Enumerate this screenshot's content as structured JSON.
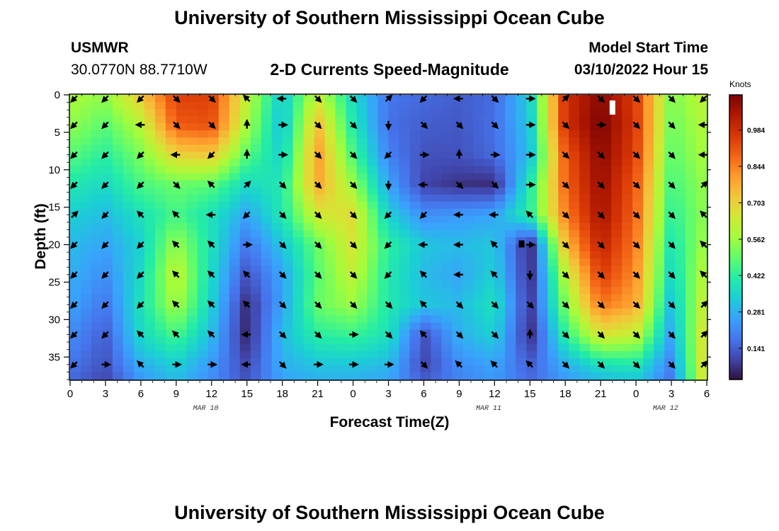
{
  "header": {
    "title": "University of Southern Mississippi Ocean Cube",
    "station_name": "USMWR",
    "station_coords": "30.0770N  88.7710W",
    "plot_title": "2-D Currents Speed-Magnitude",
    "model_label": "Model Start Time",
    "model_time": "03/10/2022 Hour 15"
  },
  "footer": {
    "title": "University of Southern Mississippi Ocean Cube"
  },
  "colors": {
    "colormap": [
      "#30123b",
      "#4145ab",
      "#4675ed",
      "#39a2fc",
      "#1bcfd4",
      "#24eca6",
      "#61fc6c",
      "#a4fc3b",
      "#d1e834",
      "#f3c63a",
      "#fe9b2d",
      "#f36315",
      "#d93806",
      "#b11901",
      "#7a0403"
    ]
  },
  "chart_data": {
    "type": "heatmap",
    "title": "2-D Currents Speed-Magnitude",
    "xlabel": "Forecast Time(Z)",
    "ylabel": "Depth (ft)",
    "x_ticks": [
      "0",
      "3",
      "6",
      "9",
      "12",
      "15",
      "18",
      "21",
      "0",
      "3",
      "6",
      "9",
      "12",
      "15",
      "18",
      "21",
      "0",
      "3",
      "6"
    ],
    "x_tick_hours": [
      0,
      3,
      6,
      9,
      12,
      15,
      18,
      21,
      24,
      27,
      30,
      33,
      36,
      39,
      42,
      45,
      48,
      51,
      54
    ],
    "x_range_hours": [
      0,
      54
    ],
    "date_labels": [
      {
        "text": "MAR 10",
        "hour": 11.5
      },
      {
        "text": "MAR 11",
        "hour": 35.5
      },
      {
        "text": "MAR 12",
        "hour": 50.5
      }
    ],
    "y_ticks": [
      0,
      5,
      10,
      15,
      20,
      25,
      30,
      35
    ],
    "y_range_ft": [
      0,
      38
    ],
    "colorbar": {
      "label": "Knots",
      "ticks": [
        "0.984",
        "0.844",
        "0.703",
        "0.562",
        "0.422",
        "0.281",
        "0.141"
      ],
      "tick_values": [
        0.984,
        0.844,
        0.703,
        0.562,
        0.422,
        0.281,
        0.141
      ],
      "range": [
        0.02,
        1.12
      ]
    },
    "speed_grid": {
      "hours": [
        0,
        3,
        6,
        9,
        12,
        15,
        18,
        21,
        24,
        27,
        30,
        33,
        36,
        39,
        42,
        45,
        48,
        51,
        54
      ],
      "depths_ft": [
        0,
        4,
        8,
        12,
        16,
        20,
        24,
        28,
        32,
        36,
        38
      ],
      "values_knots": [
        [
          0.58,
          0.55,
          0.72,
          0.95,
          0.95,
          0.62,
          0.32,
          0.62,
          0.36,
          0.18,
          0.16,
          0.14,
          0.16,
          0.34,
          0.98,
          1.1,
          0.95,
          0.52,
          0.62
        ],
        [
          0.55,
          0.48,
          0.6,
          0.9,
          0.92,
          0.58,
          0.3,
          0.74,
          0.4,
          0.17,
          0.14,
          0.13,
          0.17,
          0.32,
          0.98,
          1.12,
          0.96,
          0.5,
          0.6
        ],
        [
          0.48,
          0.42,
          0.52,
          0.7,
          0.72,
          0.48,
          0.34,
          0.8,
          0.46,
          0.2,
          0.12,
          0.12,
          0.16,
          0.3,
          0.9,
          1.1,
          0.94,
          0.48,
          0.58
        ],
        [
          0.4,
          0.36,
          0.46,
          0.5,
          0.48,
          0.36,
          0.4,
          0.78,
          0.56,
          0.26,
          0.1,
          0.07,
          0.06,
          0.4,
          0.88,
          1.08,
          0.9,
          0.45,
          0.56
        ],
        [
          0.34,
          0.3,
          0.38,
          0.46,
          0.38,
          0.26,
          0.4,
          0.64,
          0.68,
          0.34,
          0.22,
          0.24,
          0.26,
          0.42,
          0.84,
          1.06,
          0.88,
          0.42,
          0.55
        ],
        [
          0.3,
          0.26,
          0.34,
          0.56,
          0.38,
          0.18,
          0.32,
          0.5,
          0.66,
          0.42,
          0.32,
          0.3,
          0.32,
          0.05,
          0.74,
          1.02,
          0.85,
          0.38,
          0.58
        ],
        [
          0.28,
          0.22,
          0.36,
          0.62,
          0.36,
          0.12,
          0.26,
          0.48,
          0.62,
          0.4,
          0.3,
          0.26,
          0.34,
          0.06,
          0.6,
          0.96,
          0.82,
          0.35,
          0.62
        ],
        [
          0.26,
          0.18,
          0.38,
          0.58,
          0.34,
          0.06,
          0.26,
          0.5,
          0.56,
          0.4,
          0.32,
          0.3,
          0.38,
          0.08,
          0.52,
          0.86,
          0.78,
          0.3,
          0.66
        ],
        [
          0.22,
          0.14,
          0.36,
          0.46,
          0.3,
          0.05,
          0.3,
          0.42,
          0.44,
          0.38,
          0.12,
          0.28,
          0.34,
          0.06,
          0.42,
          0.66,
          0.62,
          0.26,
          0.7
        ],
        [
          0.18,
          0.12,
          0.28,
          0.34,
          0.24,
          0.1,
          0.28,
          0.32,
          0.32,
          0.3,
          0.1,
          0.22,
          0.26,
          0.14,
          0.28,
          0.38,
          0.4,
          0.2,
          0.72
        ],
        [
          0.16,
          0.1,
          0.24,
          0.3,
          0.22,
          0.12,
          0.26,
          0.28,
          0.28,
          0.26,
          0.14,
          0.2,
          0.24,
          0.16,
          0.24,
          0.3,
          0.32,
          0.18,
          0.7
        ]
      ]
    },
    "vectors": {
      "hours": [
        0,
        3,
        6,
        9,
        12,
        15,
        18,
        21,
        24,
        27,
        30,
        33,
        36,
        39,
        42,
        45,
        48,
        51,
        54
      ],
      "depths_ft": [
        0.5,
        4,
        8,
        12,
        16,
        20,
        24,
        28,
        32,
        36
      ],
      "directions_deg": [
        [
          225,
          225,
          225,
          135,
          135,
          315,
          270,
          135,
          135,
          45,
          225,
          270,
          135,
          90,
          45,
          135,
          135,
          135,
          225
        ],
        [
          225,
          225,
          270,
          135,
          135,
          0,
          90,
          135,
          135,
          180,
          135,
          135,
          135,
          90,
          135,
          90,
          135,
          135,
          270
        ],
        [
          225,
          225,
          225,
          270,
          225,
          0,
          90,
          135,
          135,
          225,
          90,
          0,
          90,
          90,
          135,
          135,
          135,
          135,
          270
        ],
        [
          225,
          225,
          225,
          135,
          315,
          45,
          135,
          135,
          135,
          180,
          270,
          135,
          135,
          90,
          135,
          135,
          135,
          135,
          45
        ],
        [
          45,
          225,
          315,
          315,
          270,
          225,
          135,
          135,
          135,
          225,
          225,
          270,
          270,
          315,
          135,
          135,
          135,
          135,
          315
        ],
        [
          225,
          225,
          225,
          315,
          315,
          90,
          135,
          135,
          135,
          225,
          270,
          270,
          315,
          90,
          135,
          135,
          135,
          135,
          315
        ],
        [
          225,
          225,
          225,
          315,
          315,
          315,
          135,
          135,
          135,
          225,
          315,
          270,
          315,
          180,
          135,
          135,
          135,
          135,
          315
        ],
        [
          225,
          225,
          225,
          315,
          315,
          315,
          135,
          135,
          135,
          135,
          315,
          135,
          135,
          135,
          135,
          135,
          135,
          135,
          45
        ],
        [
          225,
          225,
          315,
          315,
          315,
          270,
          135,
          135,
          90,
          135,
          315,
          135,
          135,
          0,
          135,
          135,
          135,
          135,
          45
        ],
        [
          225,
          90,
          315,
          90,
          90,
          270,
          135,
          90,
          90,
          90,
          135,
          315,
          315,
          315,
          135,
          135,
          135,
          135,
          45
        ]
      ]
    },
    "markers": [
      {
        "hour": 46,
        "depth_ft": 1.5,
        "color": "#ffffff"
      },
      {
        "hour": 38.3,
        "depth_ft": 19.9,
        "color": "#000000"
      }
    ]
  }
}
